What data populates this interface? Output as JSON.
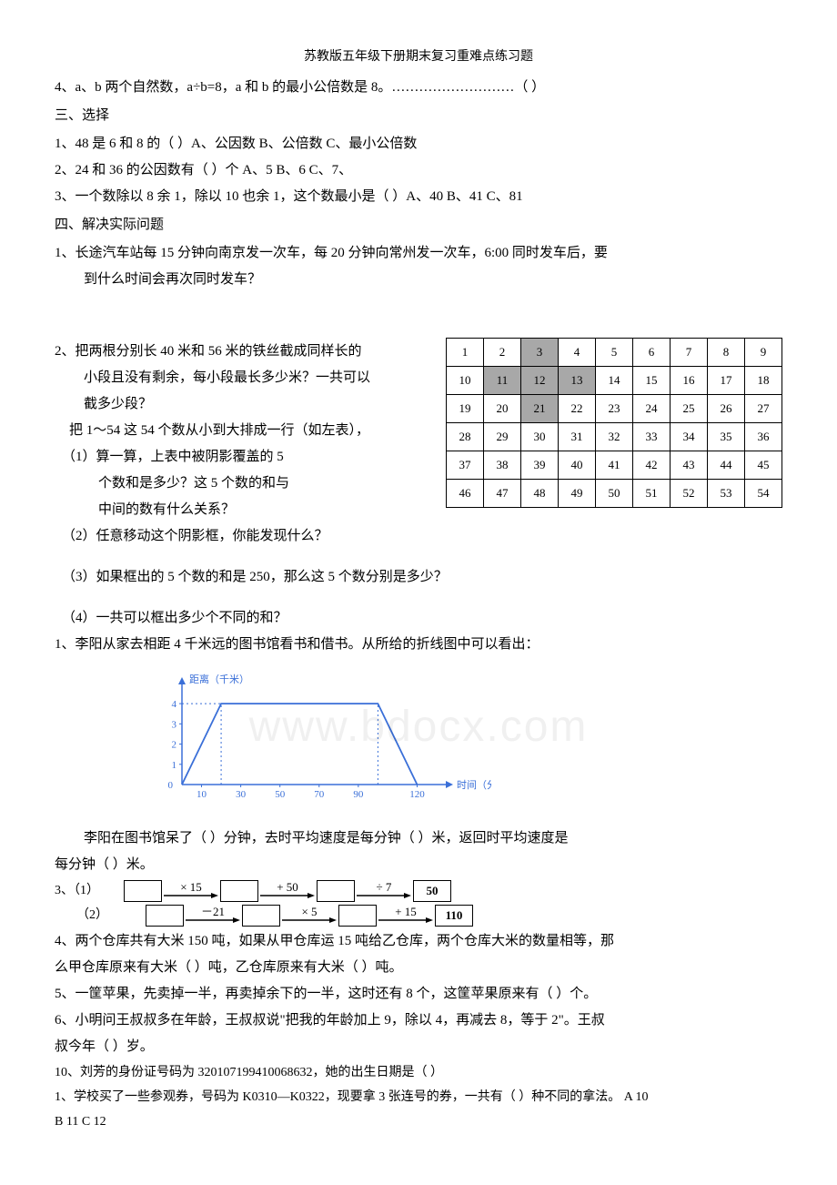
{
  "header": "苏教版五年级下册期末复习重难点练习题",
  "q4_top": "4、a、b 两个自然数，a÷b=8，a 和 b 的最小公倍数是 8。………………………（     ）",
  "sec3_title": "三、选择",
  "s3_q1": "1、48 是 6 和 8 的（      ）A、公因数        B、公倍数        C、最小公倍数",
  "s3_q2": "2、24 和 36 的公因数有（      ）个 A、5              B、6              C、7、",
  "s3_q3": "3、一个数除以 8 余 1，除以 10 也余 1，这个数最小是（      ）A、40          B、41    C、81",
  "sec4_title": "四、解决实际问题",
  "s4_q1a": "1、长途汽车站每 15 分钟向南京发一次车，每 20 分钟向常州发一次车，6:00 同时发车后，要",
  "s4_q1b": "到什么时间会再次同时发车？",
  "s4_q2a": "2、把两根分别长 40 米和 56 米的铁丝截成同样长的",
  "s4_q2b": "小段且没有剩余，每小段最长多少米？一共可以",
  "s4_q2c": "截多少段？",
  "s4_q2d": "把 1～54 这 54 个数从小到大排成一行（如左表），",
  "s4_q2e": "（1）算一算，上表中被阴影覆盖的 5",
  "s4_q2f": "个数和是多少？这 5 个数的和与",
  "s4_q2g": "中间的数有什么关系？",
  "s4_q2h": "（2）任意移动这个阴影框，你能发现什么？",
  "s4_q2i": "（3）如果框出的 5 个数的和是 250，那么这 5 个数分别是多少？",
  "s4_q2j": "（4）一共可以框出多少个不同的和？",
  "s4_q1line": "1、李阳从家去相距 4 千米远的图书馆看书和借书。从所给的折线图中可以看出：",
  "chart": {
    "ylabel": "距离（千米）",
    "xlabel": "时间（分钟）",
    "yticks": [
      0,
      1,
      2,
      3,
      4
    ],
    "xticks": [
      10,
      30,
      50,
      70,
      90,
      120
    ],
    "color": "#3a6fd8",
    "points": [
      [
        0,
        0
      ],
      [
        20,
        4
      ],
      [
        100,
        4
      ],
      [
        120,
        0
      ]
    ],
    "dashed_x": [
      20,
      100
    ]
  },
  "after_chart_a": "李阳在图书馆呆了（      ）分钟，去时平均速度是每分钟（      ）米，返回时平均速度是",
  "after_chart_b": "每分钟（      ）米。",
  "q3_label": "3、（1）",
  "q3_label2": "（2）",
  "flow1": {
    "ops": [
      "× 15",
      "+ 50",
      "÷ 7"
    ],
    "result": "50"
  },
  "flow2": {
    "ops": [
      "－21",
      "× 5",
      "+ 15"
    ],
    "result": "110"
  },
  "q4a": "4、两个仓库共有大米 150 吨，如果从甲仓库运 15 吨给乙仓库，两个仓库大米的数量相等，那",
  "q4b": "么甲仓库原来有大米（      ）吨，乙仓库原来有大米（      ）吨。",
  "q5": "5、一筐苹果，先卖掉一半，再卖掉余下的一半，这时还有 8 个，这筐苹果原来有（         ）个。",
  "q6a": "6、小明问王叔叔多在年龄，王叔叔说\"把我的年龄加上 9，除以 4，再减去 8，等于 2\"。王叔",
  "q6b": "叔今年（            ）岁。",
  "q10": "10、刘芳的身份证号码为 320107199410068632，她的出生日期是（              ）",
  "q1_bottom": "1、学校买了一些参观券，号码为 K0310—K0322，现要拿 3 张连号的券，一共有（    ）种不同的拿法。    A 10",
  "q1_bottom2": "B 11 C  12",
  "table": {
    "rows": 6,
    "cols": 9,
    "shaded": [
      "0,2",
      "1,1",
      "1,2",
      "1,3",
      "2,2"
    ]
  }
}
